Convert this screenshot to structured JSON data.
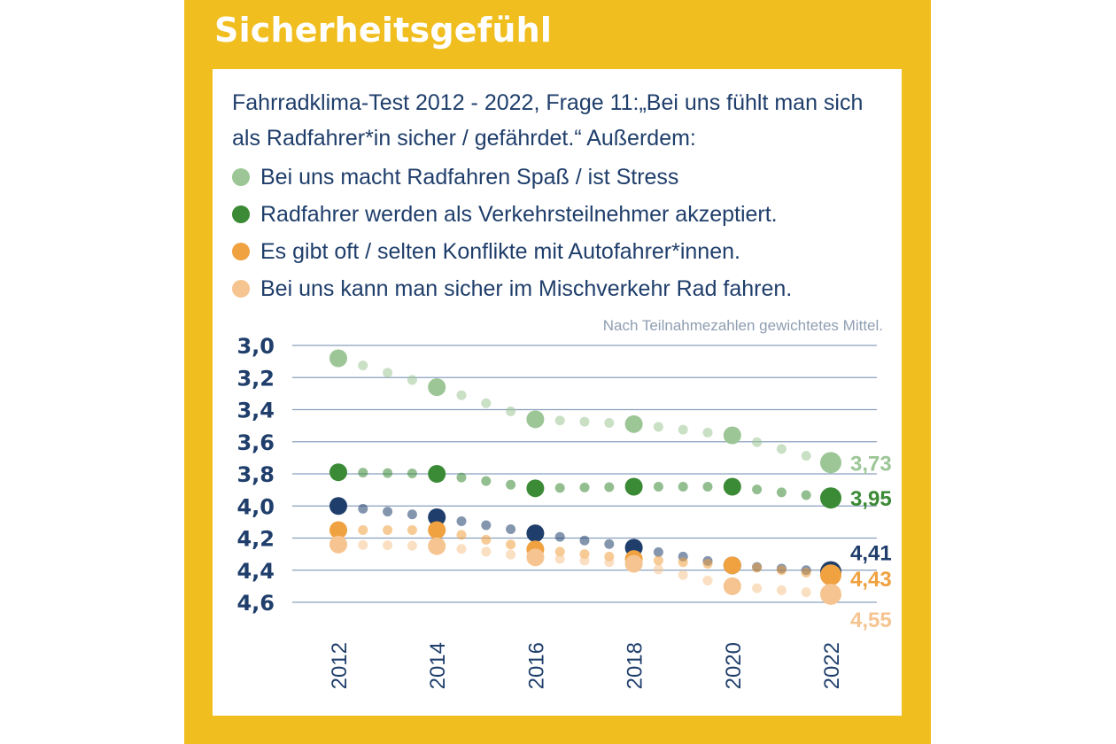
{
  "title": "Sicherheitsgefühl",
  "subtitle": "Fahrradklima-Test 2012 - 2022, Frage 11:„Bei uns fühlt man sich als Radfahrer*in sicher / gefährdet.“ Außerdem:",
  "note": "Nach Teilnahmezahlen gewichtetes Mittel.",
  "legend": [
    {
      "label": "Bei uns macht Radfahren Spaß / ist Stress",
      "color": "#9cc696"
    },
    {
      "label": "Radfahrer werden als Verkehrsteilnehmer akzeptiert.",
      "color": "#3b8a35"
    },
    {
      "label": "Es gibt oft / selten Konflikte mit Autofahrer*innen.",
      "color": "#f0a140"
    },
    {
      "label": "Bei uns kann man sicher im Mischverkehr Rad fahren.",
      "color": "#f6c490"
    }
  ],
  "chart_data": {
    "type": "line",
    "x": [
      2012,
      2014,
      2016,
      2018,
      2020,
      2022
    ],
    "ylim": [
      3.0,
      4.6
    ],
    "y_inverted": true,
    "y_ticks": [
      "3,0",
      "3,2",
      "3,4",
      "3,6",
      "3,8",
      "4,0",
      "4,2",
      "4,4",
      "4,6"
    ],
    "x_ticks": [
      "2012",
      "2014",
      "2016",
      "2018",
      "2020",
      "2022"
    ],
    "grid": true,
    "series": [
      {
        "name": "Bei uns macht Radfahren Spaß / ist Stress",
        "color": "#9cc696",
        "values": [
          3.08,
          3.26,
          3.46,
          3.49,
          3.56,
          3.73
        ],
        "end_label": "3,73"
      },
      {
        "name": "Radfahrer werden als Verkehrsteilnehmer akzeptiert.",
        "color": "#3b8a35",
        "values": [
          3.79,
          3.8,
          3.89,
          3.88,
          3.88,
          3.95
        ],
        "end_label": "3,95"
      },
      {
        "name": "",
        "color": "#1f3e6b",
        "values": [
          4.0,
          4.07,
          4.17,
          4.26,
          4.37,
          4.41
        ],
        "end_label": "4,41"
      },
      {
        "name": "Es gibt oft / selten Konflikte mit Autofahrer*innen.",
        "color": "#f0a140",
        "values": [
          4.15,
          4.15,
          4.27,
          4.33,
          4.37,
          4.43
        ],
        "end_label": "4,43"
      },
      {
        "name": "Bei uns kann man sicher im Mischverkehr Rad fahren.",
        "color": "#f6c490",
        "values": [
          4.24,
          4.25,
          4.32,
          4.36,
          4.5,
          4.55
        ],
        "end_label": "4,55"
      }
    ]
  }
}
